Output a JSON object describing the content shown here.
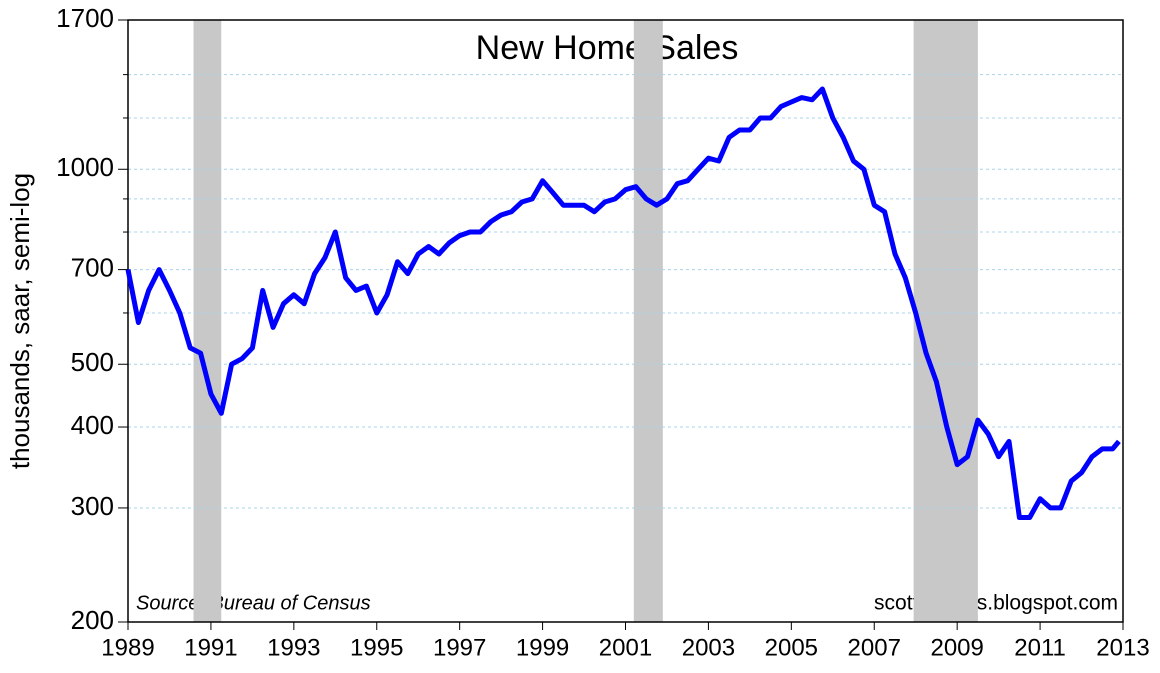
{
  "chart_data": {
    "type": "line",
    "title": "New Home Sales",
    "y_label": "thousands, saar, semi-log",
    "annotations": [
      "Source:  Bureau of Census",
      "scottgrannis.blogspot.com"
    ],
    "log_y": true,
    "grid": true,
    "xlim": [
      1989,
      2013
    ],
    "xticks": [
      1989,
      1991,
      1993,
      1995,
      1997,
      1999,
      2001,
      2003,
      2005,
      2007,
      2009,
      2011,
      2013
    ],
    "ylim": [
      200,
      1700
    ],
    "yticks": [
      200,
      300,
      400,
      500,
      700,
      1000,
      1700
    ],
    "minor_yticks": [
      600,
      800,
      900,
      1200,
      1400
    ],
    "recessions": [
      [
        1990.58,
        1991.25
      ],
      [
        2001.2,
        2001.9
      ],
      [
        2007.95,
        2009.5
      ]
    ],
    "recession_color": "#c8c8c8",
    "x": [
      1989,
      1989.25,
      1989.5,
      1989.75,
      1990,
      1990.25,
      1990.5,
      1990.75,
      1991,
      1991.25,
      1991.5,
      1991.75,
      1992,
      1992.25,
      1992.5,
      1992.75,
      1993,
      1993.25,
      1993.5,
      1993.75,
      1994,
      1994.25,
      1994.5,
      1994.75,
      1995,
      1995.25,
      1995.5,
      1995.75,
      1996,
      1996.25,
      1996.5,
      1996.75,
      1997,
      1997.25,
      1997.5,
      1997.75,
      1998,
      1998.25,
      1998.5,
      1998.75,
      1999,
      1999.25,
      1999.5,
      1999.75,
      2000,
      2000.25,
      2000.5,
      2000.75,
      2001,
      2001.25,
      2001.5,
      2001.75,
      2002,
      2002.25,
      2002.5,
      2002.75,
      2003,
      2003.25,
      2003.5,
      2003.75,
      2004,
      2004.25,
      2004.5,
      2004.75,
      2005,
      2005.25,
      2005.5,
      2005.75,
      2006,
      2006.25,
      2006.5,
      2006.75,
      2007,
      2007.25,
      2007.5,
      2007.75,
      2008,
      2008.25,
      2008.5,
      2008.75,
      2009,
      2009.25,
      2009.5,
      2009.75,
      2010,
      2010.25,
      2010.5,
      2010.75,
      2011,
      2011.25,
      2011.5,
      2011.75,
      2012,
      2012.25,
      2012.5,
      2012.75,
      2012.9
    ],
    "series": [
      {
        "name": "New Home Sales",
        "color": "#0000ff",
        "values": [
          700,
          580,
          650,
          700,
          650,
          600,
          530,
          520,
          450,
          420,
          500,
          510,
          530,
          650,
          570,
          620,
          640,
          620,
          690,
          730,
          800,
          680,
          650,
          660,
          600,
          640,
          720,
          690,
          740,
          760,
          740,
          770,
          790,
          800,
          800,
          830,
          850,
          860,
          890,
          900,
          960,
          920,
          880,
          880,
          880,
          860,
          890,
          900,
          930,
          940,
          900,
          880,
          900,
          950,
          960,
          1000,
          1040,
          1030,
          1120,
          1150,
          1150,
          1200,
          1200,
          1250,
          1270,
          1290,
          1280,
          1330,
          1200,
          1120,
          1030,
          1000,
          880,
          860,
          740,
          680,
          600,
          520,
          470,
          400,
          350,
          360,
          410,
          390,
          360,
          380,
          290,
          290,
          310,
          300,
          300,
          330,
          340,
          360,
          370,
          370,
          380
        ]
      }
    ]
  }
}
